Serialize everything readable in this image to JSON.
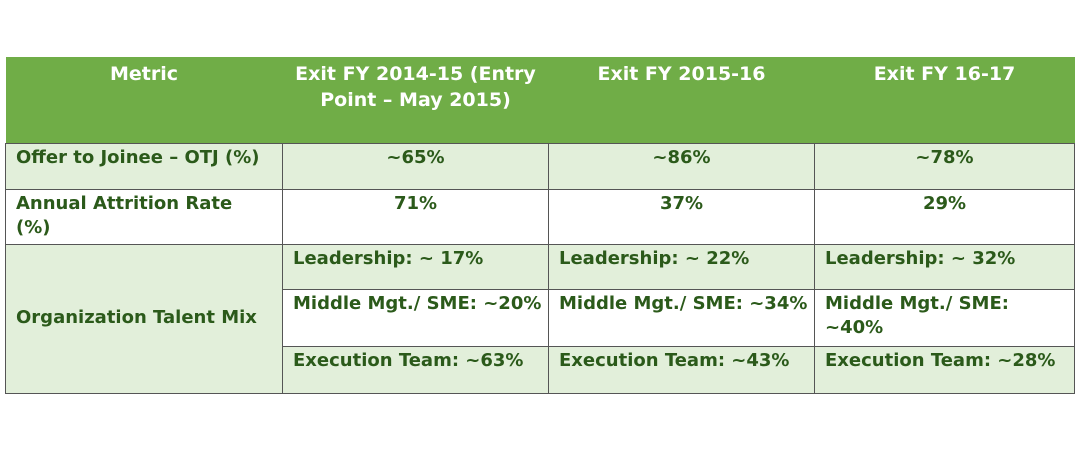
{
  "table": {
    "headers": [
      "Metric",
      "Exit FY 2014-15 (Entry Point – May 2015)",
      "Exit FY 2015-16",
      "Exit FY 16-17"
    ],
    "rows": [
      {
        "metric": "Offer to Joinee – OTJ (%)",
        "values": [
          "~65%",
          "~86%",
          "~78%"
        ]
      },
      {
        "metric": "Annual Attrition Rate (%)",
        "values": [
          "71%",
          "37%",
          "29%"
        ]
      }
    ],
    "talent_mix": {
      "label": "Organization Talent Mix",
      "rows": [
        [
          "Leadership: ~ 17%",
          "Leadership: ~ 22%",
          "Leadership: ~ 32%"
        ],
        [
          "Middle Mgt./ SME: ~20%",
          "Middle Mgt./ SME: ~34%",
          "Middle Mgt./ SME: ~40%"
        ],
        [
          "Execution Team: ~63%",
          "Execution Team: ~43%",
          "Execution Team: ~28%"
        ]
      ]
    }
  },
  "colors": {
    "header_bg": "#70ad47",
    "header_text": "#ffffff",
    "body_text": "#2b5a1a",
    "band_bg": "#e2efda"
  }
}
